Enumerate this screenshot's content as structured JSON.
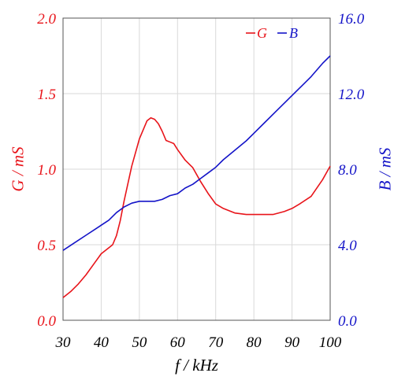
{
  "chart_data": {
    "type": "line",
    "title": "",
    "xlabel": "f / kHz",
    "ylabel_left": "G / mS",
    "ylabel_right": "B / mS",
    "xlim": [
      30,
      100
    ],
    "ylim_left": [
      0,
      2
    ],
    "ylim_right": [
      0,
      16
    ],
    "x_ticks": [
      "30",
      "40",
      "50",
      "60",
      "70",
      "80",
      "90",
      "100"
    ],
    "y_left_ticks": [
      "0.0",
      "0.5",
      "1.0",
      "1.5",
      "2.0"
    ],
    "y_right_ticks": [
      "0.0",
      "4.0",
      "8.0",
      "12.0",
      "16.0"
    ],
    "grid": true,
    "legend_position": "top-right",
    "colors": {
      "G": "#e8141a",
      "B": "#1414c8"
    },
    "series": [
      {
        "name": "G",
        "axis": "left",
        "color": "#e8141a",
        "x": [
          30,
          32,
          34,
          36,
          38,
          40,
          42,
          43,
          44,
          45,
          46,
          48,
          50,
          52,
          53,
          54,
          55,
          56,
          57,
          58,
          59,
          60,
          62,
          64,
          66,
          68,
          70,
          72,
          75,
          78,
          80,
          82,
          85,
          88,
          90,
          92,
          95,
          98,
          100
        ],
        "y": [
          0.15,
          0.19,
          0.24,
          0.3,
          0.37,
          0.44,
          0.48,
          0.5,
          0.56,
          0.66,
          0.79,
          1.02,
          1.2,
          1.32,
          1.34,
          1.33,
          1.3,
          1.25,
          1.19,
          1.18,
          1.17,
          1.13,
          1.06,
          1.01,
          0.92,
          0.84,
          0.77,
          0.74,
          0.71,
          0.7,
          0.7,
          0.7,
          0.7,
          0.72,
          0.74,
          0.77,
          0.82,
          0.93,
          1.02
        ]
      },
      {
        "name": "B",
        "axis": "right",
        "color": "#1414c8",
        "x": [
          30,
          33,
          36,
          39,
          42,
          44,
          46,
          48,
          50,
          52,
          54,
          56,
          58,
          60,
          62,
          64,
          66,
          68,
          70,
          72,
          75,
          78,
          80,
          83,
          86,
          89,
          92,
          95,
          98,
          100
        ],
        "y": [
          3.7,
          4.1,
          4.5,
          4.9,
          5.3,
          5.7,
          6.0,
          6.2,
          6.3,
          6.3,
          6.3,
          6.4,
          6.6,
          6.7,
          7.0,
          7.2,
          7.5,
          7.8,
          8.1,
          8.5,
          9.0,
          9.5,
          9.9,
          10.5,
          11.1,
          11.7,
          12.3,
          12.9,
          13.6,
          14.0
        ]
      }
    ]
  }
}
